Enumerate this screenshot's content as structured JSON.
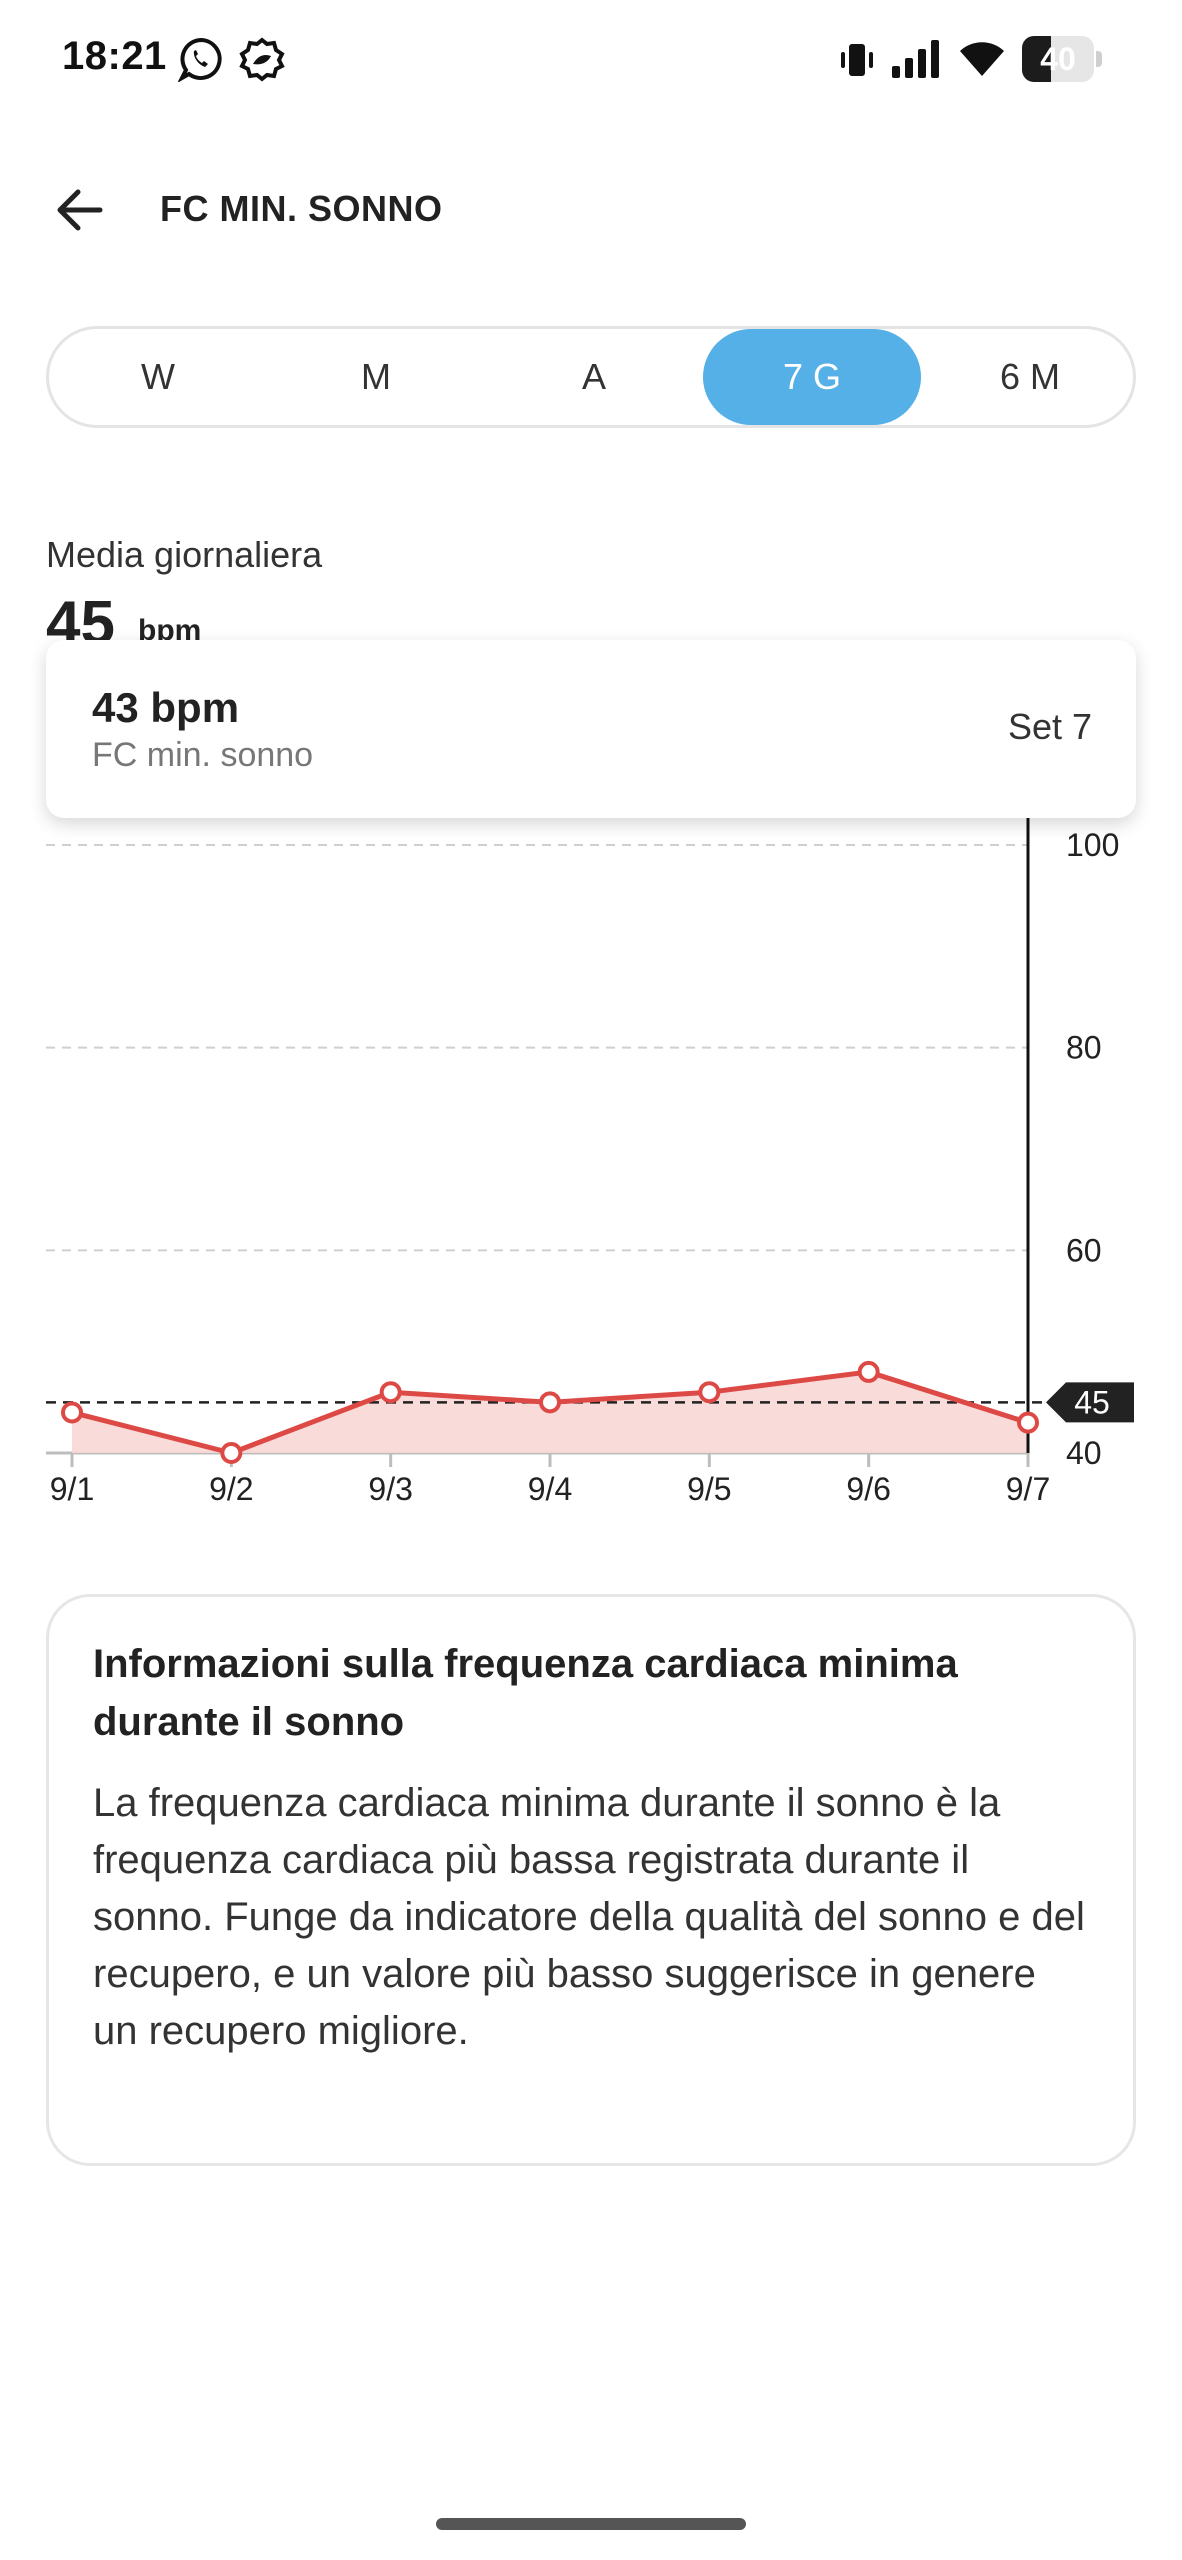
{
  "status_bar": {
    "time": "18:21",
    "battery_level": "40",
    "battery_fraction": 0.4,
    "icons": [
      "whatsapp-icon",
      "app-notification-icon",
      "vibrate-icon",
      "signal-icon",
      "wifi-icon",
      "battery-icon"
    ]
  },
  "header": {
    "back_icon": "arrow-left-icon",
    "title": "FC MIN. SONNO"
  },
  "period_selector": {
    "tabs": [
      {
        "label": "W",
        "active": false
      },
      {
        "label": "M",
        "active": false
      },
      {
        "label": "A",
        "active": false
      },
      {
        "label": "7 G",
        "active": true
      },
      {
        "label": "6 M",
        "active": false
      }
    ],
    "active_color": "#54b0e6"
  },
  "summary": {
    "label": "Media giornaliera",
    "value": "45",
    "unit": "bpm"
  },
  "tooltip": {
    "value": "43 bpm",
    "metric": "FC min. sonno",
    "date": "Set 7"
  },
  "chart_data": {
    "type": "area",
    "categories": [
      "9/1",
      "9/2",
      "9/3",
      "9/4",
      "9/5",
      "9/6",
      "9/7"
    ],
    "series": [
      {
        "values": [
          44,
          40,
          46,
          45,
          46,
          48,
          43
        ],
        "color": "#dd4a45"
      }
    ],
    "ylim": [
      40,
      100
    ],
    "y_ticks": [
      "100",
      "80",
      "60",
      "40"
    ],
    "average_line": {
      "value": 45,
      "label": "45"
    },
    "selected_index": 6,
    "grid": true,
    "fill_color": "#f8d7d6"
  },
  "info": {
    "title": "Informazioni sulla frequenza cardiaca minima durante il sonno",
    "body": "La frequenza cardiaca minima durante il sonno è la frequenza cardiaca più bassa registrata durante il sonno. Funge da indicatore della qualità del sonno e del recupero, e un valore più basso suggerisce in genere un recupero migliore."
  }
}
